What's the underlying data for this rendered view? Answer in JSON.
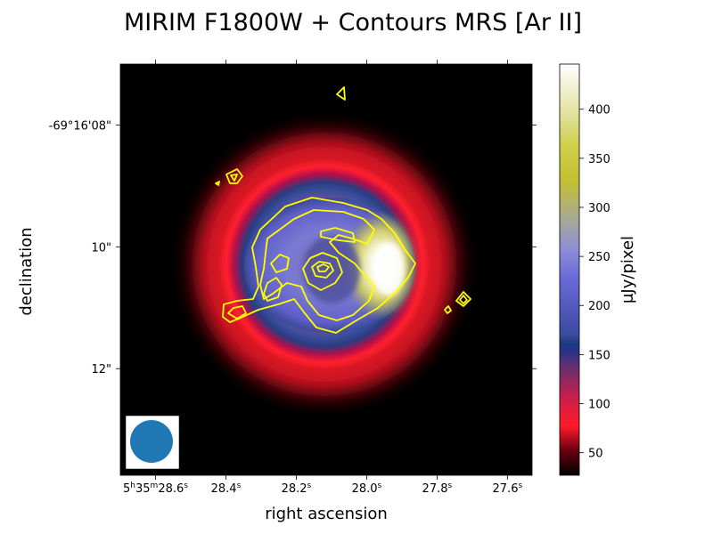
{
  "chart_data": {
    "type": "heatmap",
    "title": "MIRIM F1800W + Contours MRS [Ar II]",
    "xlabel": "right ascension",
    "ylabel": "declination",
    "x_ticks": [
      {
        "value": 28.6,
        "h": "5",
        "m": "35",
        "s": "28.6",
        "first": true
      },
      {
        "value": 28.4,
        "s": "28.4"
      },
      {
        "value": 28.2,
        "s": "28.2"
      },
      {
        "value": 28.0,
        "s": "28.0"
      },
      {
        "value": 27.8,
        "s": "27.8"
      },
      {
        "value": 27.6,
        "s": "27.6"
      }
    ],
    "x_range_seconds": [
      28.7,
      27.53
    ],
    "y_ticks": [
      {
        "value": 8,
        "label": "-69°16'08\""
      },
      {
        "value": 10,
        "label": "10\""
      },
      {
        "value": 12,
        "label": "12\""
      }
    ],
    "y_range_arcsec": [
      7.0,
      13.75
    ],
    "colorbar": {
      "label": "μJy/pixel",
      "range": [
        27,
        446
      ],
      "ticks": [
        "50",
        "100",
        "150",
        "200",
        "250",
        "300",
        "350",
        "400"
      ],
      "tick_values": [
        50,
        100,
        150,
        200,
        250,
        300,
        350,
        400
      ],
      "colormap": "black-red-navy-blue-grey-yellow-white"
    },
    "image": {
      "description_level": "ring with bright crescent on west side",
      "ring_center": [
        28.17,
        10.1
      ],
      "peak_value": 446
    },
    "beam": {
      "color": "#1f77b4"
    },
    "contours": {
      "color": "#ffff00",
      "line": "[Ar II]"
    }
  }
}
